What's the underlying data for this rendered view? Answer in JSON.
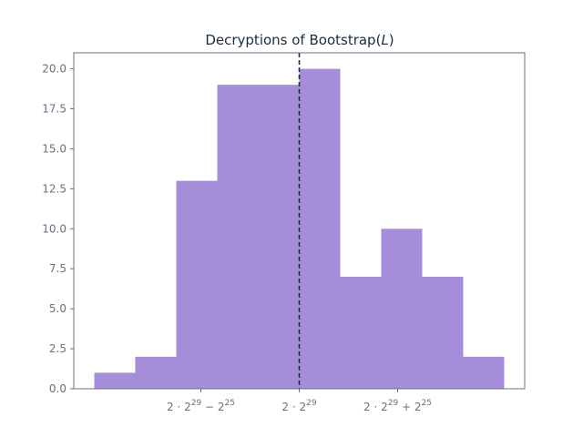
{
  "chart_data": {
    "type": "bar",
    "title": "Decryptions of Bootstrap(",
    "title_var": "L",
    "title_close": ")",
    "xlabel": "",
    "ylabel": "",
    "ylim": [
      0,
      21
    ],
    "y_ticks": [
      "0.0",
      "2.5",
      "5.0",
      "7.5",
      "10.0",
      "12.5",
      "15.0",
      "17.5",
      "20.0"
    ],
    "x_tick_labels": [
      {
        "base": "2 · 2",
        "exp": "29",
        "op": " − 2",
        "exp2": "25"
      },
      {
        "base": "2 · 2",
        "exp": "29",
        "op": "",
        "exp2": ""
      },
      {
        "base": "2 · 2",
        "exp": "29",
        "op": " + 2",
        "exp2": "25"
      }
    ],
    "bin_edges": [
      -5,
      -4,
      -3,
      -2,
      -1,
      0,
      1,
      2,
      3,
      4,
      5
    ],
    "values": [
      1,
      2,
      13,
      19,
      19,
      20,
      7,
      10,
      7,
      2
    ],
    "reference_line": 0,
    "colors": {
      "bar": "#a68dd9",
      "reference_line": "#1b2d3f",
      "axis": "#6b6f80",
      "title": "#1b2d3f"
    }
  }
}
